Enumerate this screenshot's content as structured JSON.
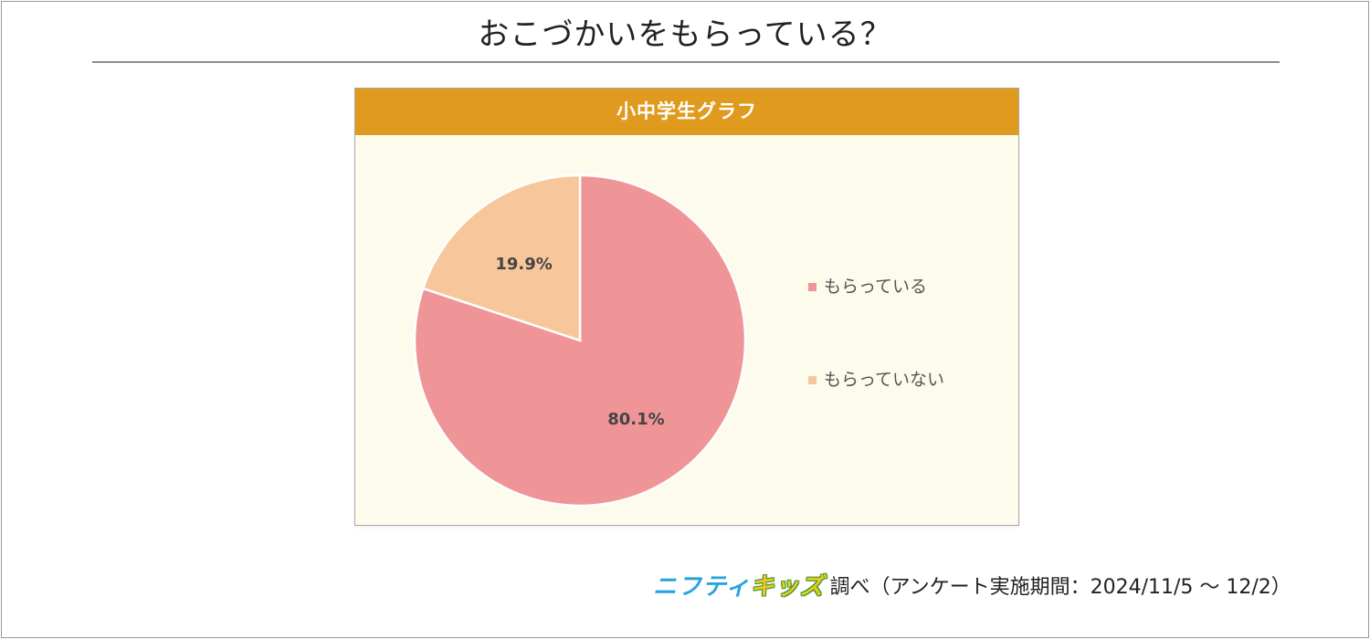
{
  "title": "おこづかいをもらっている？",
  "chart_data": {
    "type": "pie",
    "title": "小中学生グラフ",
    "categories": [
      "もらっている",
      "もらっていない"
    ],
    "values": [
      80.1,
      19.9
    ],
    "value_labels": [
      "80.1%",
      "19.9%"
    ],
    "colors": [
      "#f09597",
      "#f7c79b"
    ],
    "legend_position": "right"
  },
  "footer": {
    "brand_part1": "ニフティ",
    "brand_part2": "キッズ",
    "source_note": "調べ（アンケート実施期間：2024/11/5 ～ 12/2）"
  }
}
